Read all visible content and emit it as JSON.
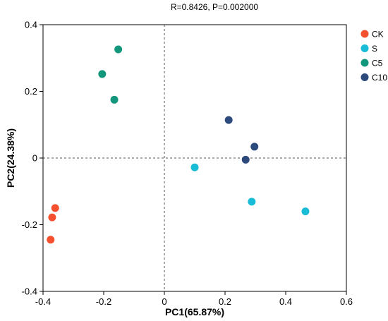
{
  "chart_data": {
    "type": "scatter",
    "subtitle": "R=0.8426, P=0.002000",
    "xlabel": "PC1(65.87%)",
    "ylabel": "PC2(24.38%)",
    "xlim": [
      -0.4,
      0.6
    ],
    "ylim": [
      -0.4,
      0.4
    ],
    "xticks": [
      -0.4,
      -0.2,
      0,
      0.2,
      0.4,
      0.6
    ],
    "xtick_labels": [
      "-0.4",
      "-0.2",
      "0",
      "0.2",
      "0.4",
      "0.6"
    ],
    "yticks": [
      -0.4,
      -0.2,
      0,
      0.2,
      0.4
    ],
    "ytick_labels": [
      "-0.4",
      "-0.2",
      "0",
      "0.2",
      "0.4"
    ],
    "grid": false,
    "reference_lines": [
      {
        "axis": "x",
        "value": 0,
        "style": "dashed"
      },
      {
        "axis": "y",
        "value": 0,
        "style": "dashed"
      }
    ],
    "legend_position": "right",
    "series": [
      {
        "name": "CK",
        "color": "#f4502f",
        "points": [
          [
            -0.36,
            -0.15
          ],
          [
            -0.37,
            -0.178
          ],
          [
            -0.375,
            -0.245
          ]
        ]
      },
      {
        "name": "S",
        "color": "#18bcd6",
        "points": [
          [
            0.1,
            -0.028
          ],
          [
            0.288,
            -0.131
          ],
          [
            0.465,
            -0.16
          ]
        ]
      },
      {
        "name": "C5",
        "color": "#13977c",
        "points": [
          [
            -0.152,
            0.326
          ],
          [
            -0.205,
            0.252
          ],
          [
            -0.165,
            0.175
          ]
        ]
      },
      {
        "name": "C10",
        "color": "#2c4a7c",
        "points": [
          [
            0.212,
            0.114
          ],
          [
            0.297,
            0.034
          ],
          [
            0.268,
            -0.005
          ]
        ]
      }
    ]
  }
}
